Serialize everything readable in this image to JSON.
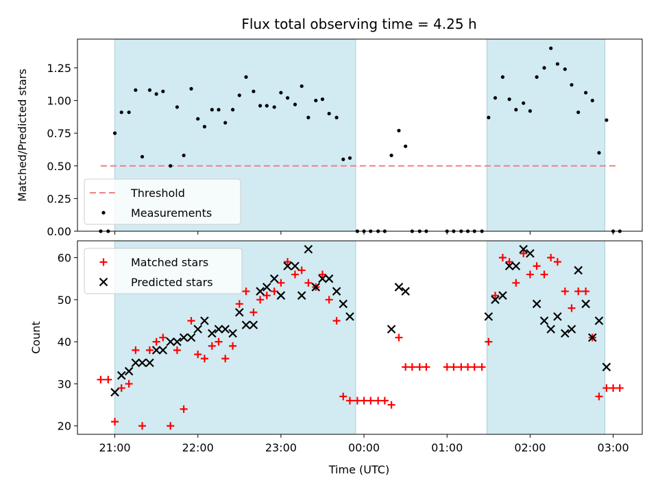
{
  "chart_data": {
    "type": "scatter",
    "title": "Flux total observing time = 4.25 h",
    "xlabel": "Time (UTC)",
    "x_unit": "hours since 21:00 UTC",
    "xlim": [
      -0.45,
      6.35
    ],
    "x_ticks": [
      {
        "value": 0,
        "label": "21:00"
      },
      {
        "value": 1,
        "label": "22:00"
      },
      {
        "value": 2,
        "label": "23:00"
      },
      {
        "value": 3,
        "label": "00:00"
      },
      {
        "value": 4,
        "label": "01:00"
      },
      {
        "value": 5,
        "label": "02:00"
      },
      {
        "value": 6,
        "label": "03:00"
      }
    ],
    "shaded_intervals": [
      [
        0.0,
        2.9
      ],
      [
        4.48,
        5.9
      ]
    ],
    "shade_color": "#add8e6",
    "panels": [
      {
        "id": "ratio",
        "ylabel": "Matched/Predicted stars",
        "ylim": [
          0,
          1.47
        ],
        "y_ticks": [
          {
            "value": 0,
            "label": "0.00"
          },
          {
            "value": 0.25,
            "label": "0.25"
          },
          {
            "value": 0.5,
            "label": "0.50"
          },
          {
            "value": 0.75,
            "label": "0.75"
          },
          {
            "value": 1.0,
            "label": "1.00"
          },
          {
            "value": 1.25,
            "label": "1.25"
          }
        ],
        "threshold": {
          "value": 0.5,
          "x_range": [
            -0.17,
            6.07
          ],
          "color": "#f08080",
          "name": "Threshold"
        },
        "legend": {
          "position": "lower-left",
          "entries": [
            "Threshold",
            "Measurements"
          ]
        },
        "series": [
          {
            "name": "Measurements",
            "color": "#000000",
            "marker": "dot",
            "points": [
              [
                -0.17,
                0
              ],
              [
                -0.08,
                0
              ],
              [
                0.0,
                0.75
              ],
              [
                0.08,
                0.91
              ],
              [
                0.17,
                0.91
              ],
              [
                0.25,
                1.08
              ],
              [
                0.33,
                0.57
              ],
              [
                0.42,
                1.08
              ],
              [
                0.5,
                1.05
              ],
              [
                0.58,
                1.07
              ],
              [
                0.67,
                0.5
              ],
              [
                0.75,
                0.95
              ],
              [
                0.83,
                0.58
              ],
              [
                0.92,
                1.09
              ],
              [
                1.0,
                0.86
              ],
              [
                1.08,
                0.8
              ],
              [
                1.17,
                0.93
              ],
              [
                1.25,
                0.93
              ],
              [
                1.33,
                0.83
              ],
              [
                1.42,
                0.93
              ],
              [
                1.5,
                1.04
              ],
              [
                1.58,
                1.18
              ],
              [
                1.67,
                1.07
              ],
              [
                1.75,
                0.96
              ],
              [
                1.83,
                0.96
              ],
              [
                1.92,
                0.95
              ],
              [
                2.0,
                1.06
              ],
              [
                2.08,
                1.02
              ],
              [
                2.17,
                0.97
              ],
              [
                2.25,
                1.11
              ],
              [
                2.33,
                0.87
              ],
              [
                2.42,
                1.0
              ],
              [
                2.5,
                1.01
              ],
              [
                2.58,
                0.9
              ],
              [
                2.67,
                0.87
              ],
              [
                2.75,
                0.55
              ],
              [
                2.83,
                0.56
              ],
              [
                2.92,
                0
              ],
              [
                3.0,
                0
              ],
              [
                3.08,
                0
              ],
              [
                3.17,
                0
              ],
              [
                3.25,
                0
              ],
              [
                3.33,
                0.58
              ],
              [
                3.42,
                0.77
              ],
              [
                3.5,
                0.65
              ],
              [
                3.58,
                0
              ],
              [
                3.67,
                0
              ],
              [
                3.75,
                0
              ],
              [
                4.0,
                0
              ],
              [
                4.08,
                0
              ],
              [
                4.17,
                0
              ],
              [
                4.25,
                0
              ],
              [
                4.33,
                0
              ],
              [
                4.42,
                0
              ],
              [
                4.5,
                0.87
              ],
              [
                4.58,
                1.02
              ],
              [
                4.67,
                1.18
              ],
              [
                4.75,
                1.01
              ],
              [
                4.83,
                0.93
              ],
              [
                4.92,
                0.98
              ],
              [
                5.0,
                0.92
              ],
              [
                5.08,
                1.18
              ],
              [
                5.17,
                1.25
              ],
              [
                5.25,
                1.4
              ],
              [
                5.33,
                1.28
              ],
              [
                5.42,
                1.24
              ],
              [
                5.5,
                1.12
              ],
              [
                5.58,
                0.91
              ],
              [
                5.67,
                1.06
              ],
              [
                5.75,
                1.0
              ],
              [
                5.83,
                0.6
              ],
              [
                5.92,
                0.85
              ],
              [
                6.0,
                0
              ],
              [
                6.08,
                0
              ]
            ]
          }
        ]
      },
      {
        "id": "counts",
        "ylabel": "Count",
        "ylim": [
          18,
          64
        ],
        "y_ticks": [
          {
            "value": 20,
            "label": "20"
          },
          {
            "value": 30,
            "label": "30"
          },
          {
            "value": 40,
            "label": "40"
          },
          {
            "value": 50,
            "label": "50"
          },
          {
            "value": 60,
            "label": "60"
          }
        ],
        "legend": {
          "position": "upper-left",
          "entries": [
            "Matched stars",
            "Predicted stars"
          ]
        },
        "series": [
          {
            "name": "Matched stars",
            "color": "#ff0000",
            "marker": "plus",
            "points": [
              [
                -0.17,
                31
              ],
              [
                -0.08,
                31
              ],
              [
                0.0,
                21
              ],
              [
                0.08,
                29
              ],
              [
                0.17,
                30
              ],
              [
                0.25,
                38
              ],
              [
                0.33,
                20
              ],
              [
                0.42,
                38
              ],
              [
                0.5,
                40
              ],
              [
                0.58,
                41
              ],
              [
                0.67,
                20
              ],
              [
                0.75,
                38
              ],
              [
                0.83,
                24
              ],
              [
                0.92,
                45
              ],
              [
                1.0,
                37
              ],
              [
                1.08,
                36
              ],
              [
                1.17,
                39
              ],
              [
                1.25,
                40
              ],
              [
                1.33,
                36
              ],
              [
                1.42,
                39
              ],
              [
                1.5,
                49
              ],
              [
                1.58,
                52
              ],
              [
                1.67,
                47
              ],
              [
                1.75,
                50
              ],
              [
                1.83,
                51
              ],
              [
                1.92,
                52
              ],
              [
                2.0,
                54
              ],
              [
                2.08,
                59
              ],
              [
                2.17,
                56
              ],
              [
                2.25,
                57
              ],
              [
                2.33,
                54
              ],
              [
                2.42,
                53
              ],
              [
                2.5,
                56
              ],
              [
                2.58,
                50
              ],
              [
                2.67,
                45
              ],
              [
                2.75,
                27
              ],
              [
                2.83,
                26
              ],
              [
                2.92,
                26
              ],
              [
                3.0,
                26
              ],
              [
                3.08,
                26
              ],
              [
                3.17,
                26
              ],
              [
                3.25,
                26
              ],
              [
                3.33,
                25
              ],
              [
                3.42,
                41
              ],
              [
                3.5,
                34
              ],
              [
                3.58,
                34
              ],
              [
                3.67,
                34
              ],
              [
                3.75,
                34
              ],
              [
                4.0,
                34
              ],
              [
                4.08,
                34
              ],
              [
                4.17,
                34
              ],
              [
                4.25,
                34
              ],
              [
                4.33,
                34
              ],
              [
                4.42,
                34
              ],
              [
                4.5,
                40
              ],
              [
                4.58,
                51
              ],
              [
                4.67,
                60
              ],
              [
                4.75,
                59
              ],
              [
                4.83,
                54
              ],
              [
                4.92,
                61
              ],
              [
                5.0,
                56
              ],
              [
                5.08,
                58
              ],
              [
                5.17,
                56
              ],
              [
                5.25,
                60
              ],
              [
                5.33,
                59
              ],
              [
                5.42,
                52
              ],
              [
                5.5,
                48
              ],
              [
                5.58,
                52
              ],
              [
                5.67,
                52
              ],
              [
                5.75,
                41
              ],
              [
                5.83,
                27
              ],
              [
                5.92,
                29
              ],
              [
                6.0,
                29
              ],
              [
                6.08,
                29
              ]
            ]
          },
          {
            "name": "Predicted stars",
            "color": "#000000",
            "marker": "x",
            "points": [
              [
                0.0,
                28
              ],
              [
                0.08,
                32
              ],
              [
                0.17,
                33
              ],
              [
                0.25,
                35
              ],
              [
                0.33,
                35
              ],
              [
                0.42,
                35
              ],
              [
                0.5,
                38
              ],
              [
                0.58,
                38
              ],
              [
                0.67,
                40
              ],
              [
                0.75,
                40
              ],
              [
                0.83,
                41
              ],
              [
                0.92,
                41
              ],
              [
                1.0,
                43
              ],
              [
                1.08,
                45
              ],
              [
                1.17,
                42
              ],
              [
                1.25,
                43
              ],
              [
                1.33,
                43
              ],
              [
                1.42,
                42
              ],
              [
                1.5,
                47
              ],
              [
                1.58,
                44
              ],
              [
                1.67,
                44
              ],
              [
                1.75,
                52
              ],
              [
                1.83,
                53
              ],
              [
                1.92,
                55
              ],
              [
                2.0,
                51
              ],
              [
                2.08,
                58
              ],
              [
                2.17,
                58
              ],
              [
                2.25,
                51
              ],
              [
                2.33,
                62
              ],
              [
                2.42,
                53
              ],
              [
                2.5,
                55
              ],
              [
                2.58,
                55
              ],
              [
                2.67,
                52
              ],
              [
                2.75,
                49
              ],
              [
                2.83,
                46
              ],
              [
                3.33,
                43
              ],
              [
                3.42,
                53
              ],
              [
                3.5,
                52
              ],
              [
                4.5,
                46
              ],
              [
                4.58,
                50
              ],
              [
                4.67,
                51
              ],
              [
                4.75,
                58
              ],
              [
                4.83,
                58
              ],
              [
                4.92,
                62
              ],
              [
                5.0,
                61
              ],
              [
                5.08,
                49
              ],
              [
                5.17,
                45
              ],
              [
                5.25,
                43
              ],
              [
                5.33,
                46
              ],
              [
                5.42,
                42
              ],
              [
                5.5,
                43
              ],
              [
                5.58,
                57
              ],
              [
                5.67,
                49
              ],
              [
                5.75,
                41
              ],
              [
                5.83,
                45
              ],
              [
                5.92,
                34
              ]
            ]
          }
        ]
      }
    ]
  }
}
